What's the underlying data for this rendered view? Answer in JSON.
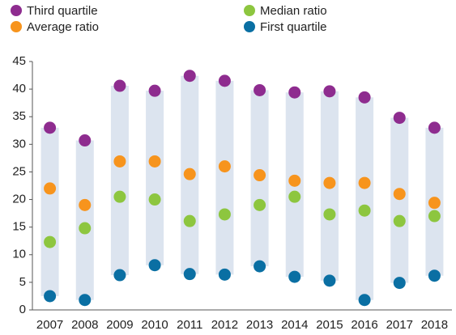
{
  "chart_data": {
    "type": "dot-range",
    "categories": [
      "2007",
      "2008",
      "2009",
      "2010",
      "2011",
      "2012",
      "2013",
      "2014",
      "2015",
      "2016",
      "2017",
      "2018"
    ],
    "series": [
      {
        "name": "Third quartile",
        "color": "#8e2c8f",
        "values": [
          33,
          30.7,
          40.6,
          39.7,
          42.4,
          41.5,
          39.8,
          39.4,
          39.6,
          38.5,
          34.8,
          33
        ]
      },
      {
        "name": "Average ratio",
        "color": "#f7941d",
        "values": [
          22,
          19,
          26.9,
          26.9,
          24.6,
          26,
          24.4,
          23.4,
          23,
          23,
          21,
          19.4
        ]
      },
      {
        "name": "Median ratio",
        "color": "#8dc63f",
        "values": [
          12.3,
          14.8,
          20.5,
          20,
          16.1,
          17.3,
          19,
          20.5,
          17.3,
          18,
          16.1,
          17
        ]
      },
      {
        "name": "First quartile",
        "color": "#0a6fa3",
        "values": [
          2.5,
          1.8,
          6.3,
          8.1,
          6.5,
          6.4,
          7.9,
          6,
          5.3,
          1.8,
          4.9,
          6.2
        ]
      }
    ],
    "range_color": "#dce4ef",
    "ylim": [
      0,
      45
    ],
    "yticks": [
      0,
      5,
      10,
      15,
      20,
      25,
      30,
      35,
      40,
      45
    ],
    "grid": false
  }
}
